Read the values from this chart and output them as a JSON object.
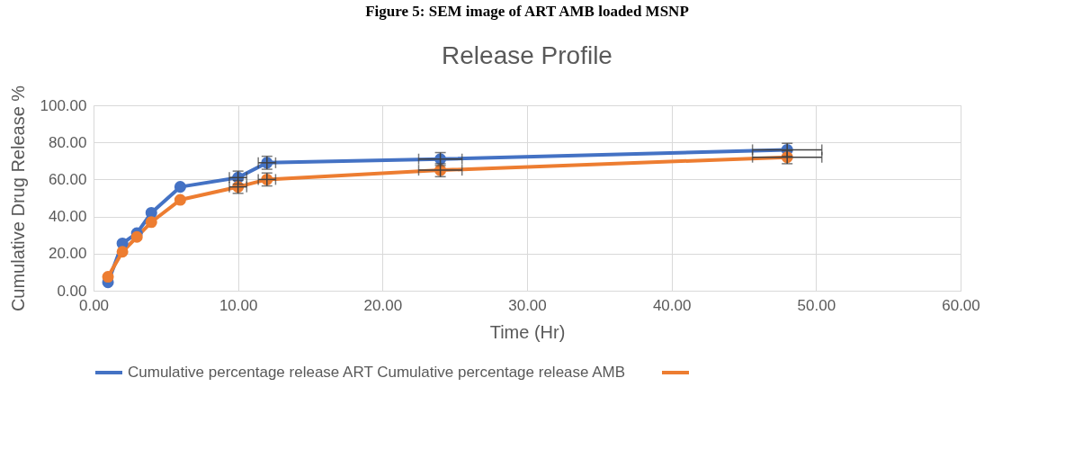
{
  "chart_data": {
    "type": "line",
    "title": "Release Profile",
    "xlabel": "Time (Hr)",
    "ylabel": "Cumulative Drug Release %",
    "annotations": [
      "Figure 5: SEM image of ART AMB loaded MSNP"
    ],
    "x": [
      1,
      2,
      3,
      4,
      6,
      10,
      12,
      24,
      48
    ],
    "series": [
      {
        "name": "Cumulative percentage release ART Cumulative percentage release AMB",
        "color": "#4472c4",
        "values": [
          4.5,
          25.5,
          31,
          42,
          56,
          61,
          69,
          71,
          76
        ],
        "errors": [
          null,
          null,
          null,
          null,
          null,
          3.5,
          3.5,
          3.5,
          3.5
        ],
        "xerrors": [
          null,
          null,
          null,
          null,
          null,
          0.6,
          0.6,
          1.5,
          2.4
        ]
      },
      {
        "color": "#ed7d31",
        "values": [
          7.5,
          21,
          29,
          37,
          49,
          56,
          60,
          65,
          72
        ],
        "errors": [
          null,
          null,
          null,
          null,
          null,
          3.5,
          3.5,
          3.5,
          3.5
        ],
        "xerrors": [
          null,
          null,
          null,
          null,
          null,
          0.6,
          0.6,
          1.5,
          2.4
        ]
      }
    ],
    "xlim": [
      0,
      60
    ],
    "ylim": [
      0,
      100
    ],
    "xticks": [
      {
        "value": 0,
        "label": "0.00"
      },
      {
        "value": 10,
        "label": "10.00"
      },
      {
        "value": 20,
        "label": "20.00"
      },
      {
        "value": 30,
        "label": "30.00"
      },
      {
        "value": 40,
        "label": "40.00"
      },
      {
        "value": 50,
        "label": "50.00"
      },
      {
        "value": 60,
        "label": "60.00"
      }
    ],
    "yticks": [
      {
        "value": 0,
        "label": "0.00"
      },
      {
        "value": 20,
        "label": "20.00"
      },
      {
        "value": 40,
        "label": "40.00"
      },
      {
        "value": 60,
        "label": "60.00"
      },
      {
        "value": 80,
        "label": "80.00"
      },
      {
        "value": 100,
        "label": "100.00"
      }
    ],
    "grid": true,
    "legend": "bottom",
    "marker": "circle",
    "line_style": "solid"
  }
}
